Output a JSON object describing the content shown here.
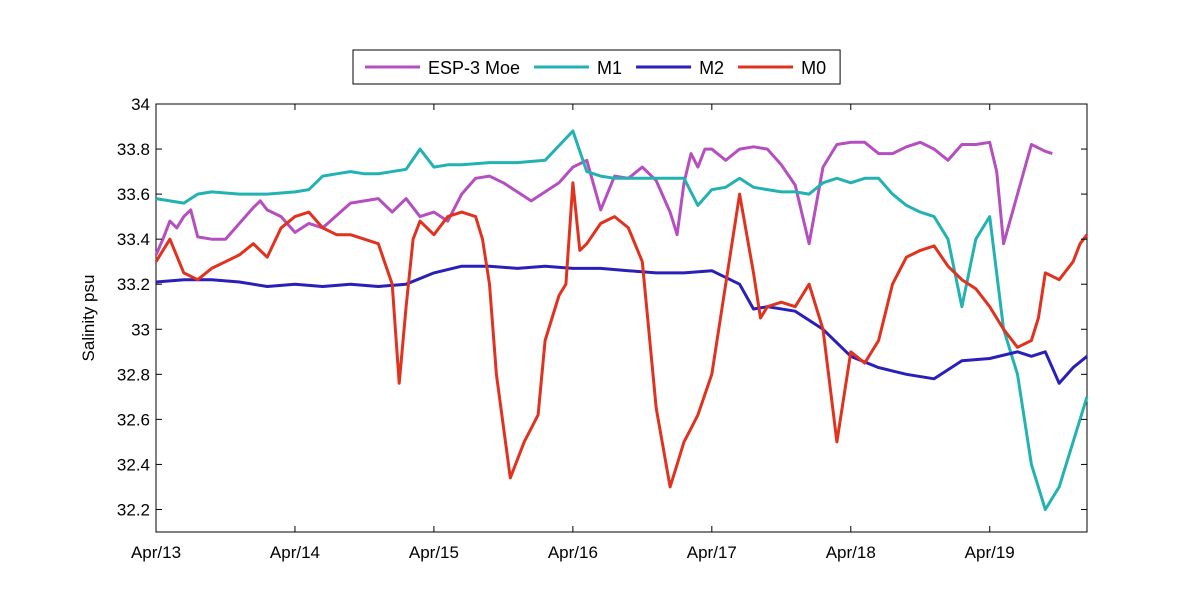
{
  "chart_data": {
    "type": "line",
    "title": "",
    "xlabel": "",
    "ylabel": "Salinity psu",
    "x_ticks": [
      "Apr/13",
      "Apr/14",
      "Apr/15",
      "Apr/16",
      "Apr/17",
      "Apr/18",
      "Apr/19"
    ],
    "xlim": [
      0,
      6.7
    ],
    "ylim": [
      32.1,
      34.0
    ],
    "y_ticks": [
      "32.2",
      "32.4",
      "32.6",
      "32.8",
      "33",
      "33.2",
      "33.4",
      "33.6",
      "33.8",
      "34"
    ],
    "y_tick_values": [
      32.2,
      32.4,
      32.6,
      32.8,
      33.0,
      33.2,
      33.4,
      33.6,
      33.8,
      34.0
    ],
    "grid": false,
    "legend_position": "top-center",
    "series": [
      {
        "name": "ESP-3 Moe",
        "color": "#b54fbf",
        "x": [
          0,
          0.05,
          0.1,
          0.15,
          0.2,
          0.25,
          0.3,
          0.4,
          0.5,
          0.6,
          0.7,
          0.75,
          0.8,
          0.9,
          1.0,
          1.1,
          1.2,
          1.4,
          1.6,
          1.7,
          1.8,
          1.9,
          2.0,
          2.1,
          2.2,
          2.3,
          2.4,
          2.5,
          2.7,
          2.9,
          3.0,
          3.1,
          3.2,
          3.3,
          3.4,
          3.5,
          3.6,
          3.7,
          3.75,
          3.8,
          3.85,
          3.9,
          3.95,
          4.0,
          4.1,
          4.2,
          4.3,
          4.4,
          4.5,
          4.6,
          4.7,
          4.8,
          4.9,
          5.0,
          5.1,
          5.2,
          5.3,
          5.4,
          5.5,
          5.6,
          5.7,
          5.8,
          5.9,
          6.0,
          6.05,
          6.1,
          6.2,
          6.3,
          6.4,
          6.45
        ],
        "y": [
          33.33,
          33.4,
          33.48,
          33.45,
          33.5,
          33.53,
          33.41,
          33.4,
          33.4,
          33.47,
          33.54,
          33.57,
          33.53,
          33.5,
          33.43,
          33.47,
          33.45,
          33.56,
          33.58,
          33.52,
          33.58,
          33.5,
          33.52,
          33.48,
          33.6,
          33.67,
          33.68,
          33.65,
          33.57,
          33.65,
          33.72,
          33.75,
          33.53,
          33.68,
          33.67,
          33.72,
          33.66,
          33.52,
          33.42,
          33.65,
          33.78,
          33.72,
          33.8,
          33.8,
          33.75,
          33.8,
          33.81,
          33.8,
          33.73,
          33.64,
          33.38,
          33.72,
          33.82,
          33.83,
          33.83,
          33.78,
          33.78,
          33.81,
          33.83,
          33.8,
          33.75,
          33.82,
          33.82,
          33.83,
          33.7,
          33.38,
          33.6,
          33.82,
          33.79,
          33.78
        ]
      },
      {
        "name": "M1",
        "color": "#22b2b2",
        "x": [
          0,
          0.1,
          0.2,
          0.3,
          0.4,
          0.6,
          0.8,
          1.0,
          1.1,
          1.2,
          1.3,
          1.4,
          1.5,
          1.6,
          1.8,
          1.9,
          2.0,
          2.1,
          2.2,
          2.4,
          2.6,
          2.8,
          3.0,
          3.1,
          3.2,
          3.3,
          3.4,
          3.6,
          3.8,
          3.9,
          4.0,
          4.1,
          4.2,
          4.3,
          4.4,
          4.5,
          4.6,
          4.7,
          4.8,
          4.9,
          5.0,
          5.1,
          5.2,
          5.3,
          5.4,
          5.5,
          5.6,
          5.7,
          5.8,
          5.9,
          6.0,
          6.1,
          6.2,
          6.3,
          6.4,
          6.5,
          6.6,
          6.7
        ],
        "y": [
          33.58,
          33.57,
          33.56,
          33.6,
          33.61,
          33.6,
          33.6,
          33.61,
          33.62,
          33.68,
          33.69,
          33.7,
          33.69,
          33.69,
          33.71,
          33.8,
          33.72,
          33.73,
          33.73,
          33.74,
          33.74,
          33.75,
          33.88,
          33.7,
          33.68,
          33.67,
          33.67,
          33.67,
          33.67,
          33.55,
          33.62,
          33.63,
          33.67,
          33.63,
          33.62,
          33.61,
          33.61,
          33.6,
          33.65,
          33.67,
          33.65,
          33.67,
          33.67,
          33.6,
          33.55,
          33.52,
          33.5,
          33.4,
          33.1,
          33.4,
          33.5,
          33.0,
          32.8,
          32.4,
          32.2,
          32.3,
          32.5,
          32.7
        ]
      },
      {
        "name": "M2",
        "color": "#2a1fb8",
        "x": [
          0,
          0.2,
          0.4,
          0.6,
          0.8,
          1.0,
          1.2,
          1.4,
          1.6,
          1.8,
          2.0,
          2.2,
          2.4,
          2.6,
          2.8,
          3.0,
          3.2,
          3.4,
          3.6,
          3.8,
          4.0,
          4.2,
          4.3,
          4.4,
          4.6,
          4.8,
          5.0,
          5.2,
          5.4,
          5.6,
          5.8,
          6.0,
          6.2,
          6.3,
          6.4,
          6.5,
          6.6,
          6.7
        ],
        "y": [
          33.21,
          33.22,
          33.22,
          33.21,
          33.19,
          33.2,
          33.19,
          33.2,
          33.19,
          33.2,
          33.25,
          33.28,
          33.28,
          33.27,
          33.28,
          33.27,
          33.27,
          33.26,
          33.25,
          33.25,
          33.26,
          33.2,
          33.09,
          33.1,
          33.08,
          33.0,
          32.88,
          32.83,
          32.8,
          32.78,
          32.86,
          32.87,
          32.9,
          32.88,
          32.9,
          32.76,
          32.83,
          32.88
        ]
      },
      {
        "name": "M0",
        "color": "#e0321e",
        "x": [
          0,
          0.1,
          0.2,
          0.3,
          0.4,
          0.5,
          0.6,
          0.7,
          0.8,
          0.9,
          1.0,
          1.1,
          1.2,
          1.3,
          1.4,
          1.5,
          1.6,
          1.7,
          1.75,
          1.8,
          1.85,
          1.9,
          1.95,
          2.0,
          2.1,
          2.2,
          2.3,
          2.35,
          2.4,
          2.45,
          2.55,
          2.65,
          2.75,
          2.8,
          2.9,
          2.95,
          3.0,
          3.05,
          3.1,
          3.2,
          3.3,
          3.4,
          3.5,
          3.6,
          3.7,
          3.75,
          3.8,
          3.85,
          3.9,
          4.0,
          4.1,
          4.2,
          4.3,
          4.35,
          4.4,
          4.5,
          4.6,
          4.7,
          4.8,
          4.9,
          5.0,
          5.1,
          5.2,
          5.3,
          5.4,
          5.5,
          5.6,
          5.7,
          5.8,
          5.9,
          6.0,
          6.1,
          6.2,
          6.3,
          6.35,
          6.4,
          6.5,
          6.6,
          6.65,
          6.7
        ],
        "y": [
          33.3,
          33.4,
          33.25,
          33.22,
          33.27,
          33.3,
          33.33,
          33.38,
          33.32,
          33.45,
          33.5,
          33.52,
          33.45,
          33.42,
          33.42,
          33.4,
          33.38,
          33.2,
          32.76,
          33.1,
          33.4,
          33.48,
          33.45,
          33.42,
          33.5,
          33.52,
          33.5,
          33.4,
          33.2,
          32.8,
          32.34,
          32.5,
          32.62,
          32.95,
          33.15,
          33.2,
          33.65,
          33.35,
          33.38,
          33.47,
          33.5,
          33.45,
          33.3,
          32.65,
          32.3,
          32.4,
          32.5,
          32.56,
          32.62,
          32.8,
          33.2,
          33.6,
          33.25,
          33.05,
          33.1,
          33.12,
          33.1,
          33.2,
          33.0,
          32.5,
          32.9,
          32.85,
          32.95,
          33.2,
          33.32,
          33.35,
          33.37,
          33.28,
          33.22,
          33.18,
          33.1,
          33.0,
          32.92,
          32.95,
          33.05,
          33.25,
          33.22,
          33.3,
          33.38,
          33.42
        ]
      }
    ]
  }
}
